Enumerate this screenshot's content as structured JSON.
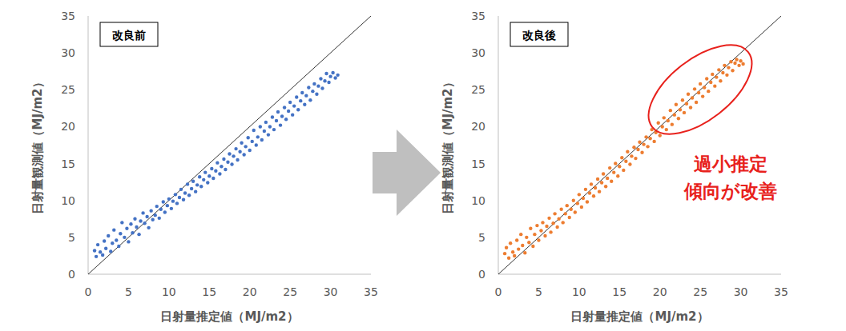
{
  "chart_data": [
    {
      "type": "scatter",
      "title": "改良前",
      "x_label": "日射量推定値（MJ/m2）",
      "y_label": "日射量観測値（MJ/m2）",
      "color": "#4472c4",
      "marker": "circle",
      "xlim": [
        0,
        35
      ],
      "ylim": [
        0,
        35
      ],
      "xticks": [
        0,
        5,
        10,
        15,
        20,
        25,
        30,
        35
      ],
      "yticks": [
        0,
        5,
        10,
        15,
        20,
        25,
        30,
        35
      ],
      "x": [
        0.8,
        1.0,
        1.2,
        1.5,
        1.8,
        2.0,
        2.2,
        2.5,
        2.8,
        3.0,
        3.2,
        3.5,
        3.8,
        4.0,
        4.2,
        4.5,
        4.8,
        5.0,
        5.3,
        5.5,
        5.8,
        6.0,
        6.3,
        6.5,
        6.8,
        7.0,
        7.3,
        7.5,
        7.8,
        8.0,
        8.3,
        8.5,
        8.8,
        9.0,
        9.3,
        9.5,
        9.8,
        10.0,
        10.3,
        10.5,
        10.8,
        11.0,
        11.3,
        11.5,
        11.8,
        12.0,
        12.3,
        12.5,
        12.8,
        13.0,
        13.3,
        13.5,
        13.8,
        14.0,
        14.3,
        14.5,
        14.8,
        15.0,
        15.3,
        15.5,
        15.8,
        16.0,
        16.3,
        16.5,
        16.8,
        17.0,
        17.3,
        17.5,
        17.8,
        18.0,
        18.3,
        18.5,
        18.8,
        19.0,
        19.3,
        19.5,
        19.8,
        20.0,
        20.3,
        20.5,
        20.8,
        21.0,
        21.3,
        21.5,
        21.8,
        22.0,
        22.3,
        22.5,
        22.8,
        23.0,
        23.3,
        23.5,
        23.8,
        24.0,
        24.3,
        24.5,
        24.8,
        25.0,
        25.3,
        25.5,
        25.8,
        26.0,
        26.3,
        26.5,
        26.8,
        27.0,
        27.3,
        27.5,
        27.8,
        28.0,
        28.3,
        28.5,
        28.8,
        29.0,
        29.3,
        29.5,
        29.8,
        30.0,
        30.3,
        30.6,
        30.9
      ],
      "values": [
        3.2,
        2.4,
        4.0,
        3.0,
        2.6,
        4.5,
        3.5,
        5.2,
        3.1,
        4.2,
        6.0,
        4.6,
        3.8,
        5.5,
        7.0,
        5.0,
        6.2,
        4.4,
        6.8,
        5.6,
        7.5,
        6.4,
        5.4,
        7.2,
        8.3,
        6.9,
        7.8,
        6.3,
        8.6,
        7.4,
        8.0,
        9.2,
        7.6,
        8.8,
        9.8,
        8.4,
        9.3,
        10.2,
        8.9,
        9.9,
        10.8,
        9.6,
        10.4,
        11.5,
        10.1,
        11.0,
        12.2,
        10.7,
        11.6,
        12.6,
        11.2,
        12.1,
        13.2,
        11.9,
        12.8,
        13.8,
        12.4,
        13.3,
        14.3,
        13.0,
        14.0,
        15.1,
        13.6,
        14.6,
        15.6,
        14.2,
        15.2,
        16.3,
        14.9,
        16.0,
        17.0,
        15.5,
        16.6,
        17.8,
        16.2,
        17.3,
        18.5,
        16.8,
        18.0,
        19.5,
        17.5,
        18.6,
        20.0,
        18.2,
        19.4,
        20.6,
        18.9,
        20.0,
        21.3,
        19.6,
        20.8,
        22.0,
        20.2,
        21.4,
        22.6,
        21.0,
        22.1,
        23.3,
        21.6,
        22.8,
        24.0,
        22.3,
        23.5,
        24.6,
        23.0,
        24.2,
        25.3,
        23.6,
        24.8,
        25.8,
        24.4,
        25.5,
        26.5,
        25.2,
        26.2,
        27.2,
        26.0,
        26.8,
        27.3,
        26.6,
        27.0
      ]
    },
    {
      "type": "scatter",
      "title": "改良後",
      "x_label": "日射量推定値（MJ/m2）",
      "y_label": "日射量観測値（MJ/m2）",
      "color": "#ed7d31",
      "marker": "circle",
      "xlim": [
        0,
        35
      ],
      "ylim": [
        0,
        35
      ],
      "xticks": [
        0,
        5,
        10,
        15,
        20,
        25,
        30,
        35
      ],
      "yticks": [
        0,
        5,
        10,
        15,
        20,
        25,
        30,
        35
      ],
      "annotations": [
        "過小推定",
        "傾向が改善"
      ],
      "x": [
        0.8,
        1.0,
        1.3,
        1.5,
        1.8,
        2.0,
        2.3,
        2.5,
        2.8,
        3.0,
        3.3,
        3.5,
        3.8,
        4.0,
        4.3,
        4.5,
        4.8,
        5.0,
        5.3,
        5.5,
        5.8,
        6.0,
        6.3,
        6.5,
        6.8,
        7.0,
        7.3,
        7.5,
        7.8,
        8.0,
        8.3,
        8.5,
        8.8,
        9.0,
        9.3,
        9.5,
        9.8,
        10.0,
        10.3,
        10.5,
        10.8,
        11.0,
        11.3,
        11.5,
        11.8,
        12.0,
        12.3,
        12.5,
        12.8,
        13.0,
        13.3,
        13.5,
        13.8,
        14.0,
        14.3,
        14.5,
        14.8,
        15.0,
        15.3,
        15.5,
        15.8,
        16.0,
        16.3,
        16.5,
        16.8,
        17.0,
        17.3,
        17.5,
        17.8,
        18.0,
        18.3,
        18.5,
        18.8,
        19.0,
        19.3,
        19.5,
        19.8,
        20.0,
        20.3,
        20.5,
        20.8,
        21.0,
        21.3,
        21.5,
        21.8,
        22.0,
        22.3,
        22.5,
        22.8,
        23.0,
        23.3,
        23.5,
        23.8,
        24.0,
        24.3,
        24.5,
        24.8,
        25.0,
        25.3,
        25.5,
        25.8,
        26.0,
        26.3,
        26.5,
        26.8,
        27.0,
        27.3,
        27.5,
        27.8,
        28.0,
        28.3,
        28.5,
        28.8,
        29.0,
        29.3,
        29.5,
        29.8,
        30.0,
        30.3
      ],
      "values": [
        2.8,
        3.6,
        2.2,
        4.2,
        3.0,
        2.5,
        4.6,
        3.4,
        5.4,
        3.9,
        2.9,
        5.0,
        4.3,
        6.2,
        3.8,
        5.4,
        6.6,
        4.6,
        5.9,
        7.0,
        5.2,
        6.5,
        7.6,
        5.7,
        6.9,
        8.2,
        6.4,
        7.5,
        8.8,
        7.0,
        8.2,
        9.3,
        7.7,
        8.8,
        10.0,
        8.4,
        9.6,
        10.8,
        9.1,
        10.3,
        11.5,
        9.8,
        11.0,
        12.2,
        10.6,
        11.7,
        12.9,
        11.2,
        12.4,
        13.6,
        11.9,
        13.0,
        14.4,
        12.6,
        13.8,
        15.0,
        13.3,
        14.6,
        15.8,
        14.1,
        15.3,
        16.6,
        14.9,
        16.0,
        17.2,
        15.7,
        16.9,
        17.9,
        16.5,
        17.6,
        18.6,
        17.3,
        18.4,
        19.6,
        18.0,
        19.2,
        20.5,
        18.8,
        20.0,
        21.2,
        19.6,
        20.8,
        22.2,
        20.3,
        21.6,
        23.0,
        21.1,
        22.3,
        23.6,
        21.9,
        23.1,
        24.4,
        22.6,
        23.9,
        25.1,
        23.3,
        24.6,
        25.8,
        24.1,
        25.3,
        26.5,
        24.8,
        26.0,
        27.1,
        25.5,
        26.7,
        27.7,
        26.2,
        27.3,
        28.3,
        27.0,
        28.0,
        28.8,
        27.6,
        28.6,
        29.1,
        28.3,
        28.9,
        28.5
      ]
    }
  ]
}
